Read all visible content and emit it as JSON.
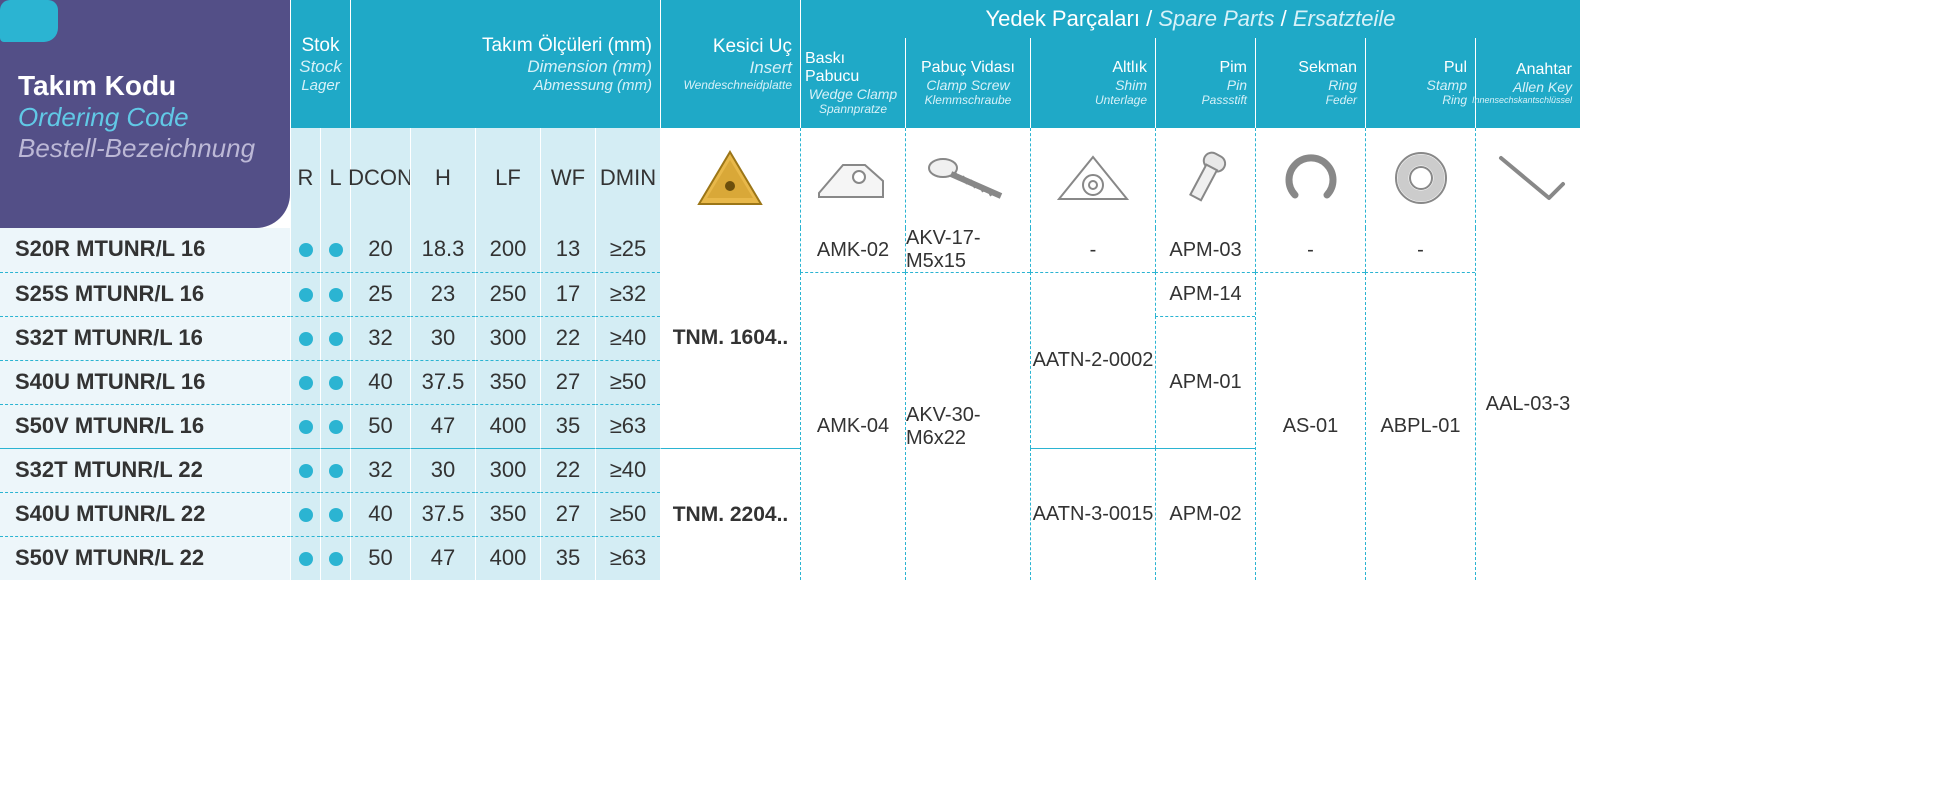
{
  "colors": {
    "teal": "#1fa9c7",
    "tealLight": "#d4edf4",
    "tealPanel": "#edf6fa",
    "purple": "#534f87",
    "purpleLight": "#c0bcd9",
    "accentBlue": "#5bc0de",
    "dot": "#2bb4d2"
  },
  "ordering": {
    "tr": "Takım Kodu",
    "en": "Ordering Code",
    "de": "Bestell-Bezeichnung"
  },
  "spareTitle": {
    "tr": "Yedek Parçaları",
    "en": "Spare Parts",
    "de": "Ersatzteile"
  },
  "groups": {
    "stock": {
      "tr": "Stok",
      "en": "Stock",
      "de": "Lager"
    },
    "dim": {
      "tr": "Takım Ölçüleri (mm)",
      "en": "Dimension (mm)",
      "de": "Abmessung (mm)"
    },
    "insert": {
      "tr": "Kesici Uç",
      "en": "Insert",
      "de": "Wendeschneidplatte"
    },
    "wedge": {
      "tr": "Baskı Pabucu",
      "en": "Wedge Clamp",
      "de": "Spannpratze"
    },
    "clampScrew": {
      "tr": "Pabuç Vidası",
      "en": "Clamp Screw",
      "de": "Klemmschraube"
    },
    "shim": {
      "tr": "Altlık",
      "en": "Shim",
      "de": "Unterlage"
    },
    "pin": {
      "tr": "Pim",
      "en": "Pin",
      "de": "Passstift"
    },
    "ring": {
      "tr": "Sekman",
      "en": "Ring",
      "de": "Feder"
    },
    "stamp": {
      "tr": "Pul",
      "en": "Stamp",
      "de": "Ring"
    },
    "key": {
      "tr": "Anahtar",
      "en": "Allen Key",
      "de": "Innensechskantschlüssel"
    }
  },
  "subheads": {
    "r": "R",
    "l": "L",
    "dcon": "DCON",
    "h": "H",
    "lf": "LF",
    "wf": "WF",
    "dmin": "DMIN"
  },
  "rows": [
    {
      "code": "S20R MTUNR/L 16",
      "r": true,
      "l": true,
      "dcon": "20",
      "h": "18.3",
      "lf": "200",
      "wf": "13",
      "dmin": "≥25"
    },
    {
      "code": "S25S MTUNR/L 16",
      "r": true,
      "l": true,
      "dcon": "25",
      "h": "23",
      "lf": "250",
      "wf": "17",
      "dmin": "≥32"
    },
    {
      "code": "S32T MTUNR/L 16",
      "r": true,
      "l": true,
      "dcon": "32",
      "h": "30",
      "lf": "300",
      "wf": "22",
      "dmin": "≥40"
    },
    {
      "code": "S40U MTUNR/L 16",
      "r": true,
      "l": true,
      "dcon": "40",
      "h": "37.5",
      "lf": "350",
      "wf": "27",
      "dmin": "≥50"
    },
    {
      "code": "S50V MTUNR/L 16",
      "r": true,
      "l": true,
      "dcon": "50",
      "h": "47",
      "lf": "400",
      "wf": "35",
      "dmin": "≥63"
    },
    {
      "code": "S32T MTUNR/L 22",
      "r": true,
      "l": true,
      "dcon": "32",
      "h": "30",
      "lf": "300",
      "wf": "22",
      "dmin": "≥40",
      "groupStart": true
    },
    {
      "code": "S40U MTUNR/L 22",
      "r": true,
      "l": true,
      "dcon": "40",
      "h": "37.5",
      "lf": "350",
      "wf": "27",
      "dmin": "≥50"
    },
    {
      "code": "S50V MTUNR/L 22",
      "r": true,
      "l": true,
      "dcon": "50",
      "h": "47",
      "lf": "400",
      "wf": "35",
      "dmin": "≥63"
    }
  ],
  "spareCells": {
    "insert": [
      {
        "rowStart": 0,
        "rowSpan": 5,
        "value": "TNM. 1604.."
      },
      {
        "rowStart": 5,
        "rowSpan": 3,
        "value": "TNM. 2204.."
      }
    ],
    "wedge": [
      {
        "rowStart": 0,
        "rowSpan": 1,
        "value": "AMK-02"
      },
      {
        "rowStart": 1,
        "rowSpan": 7,
        "value": "AMK-04"
      }
    ],
    "clampScrew": [
      {
        "rowStart": 0,
        "rowSpan": 1,
        "value": "AKV-17-M5x15"
      },
      {
        "rowStart": 1,
        "rowSpan": 7,
        "value": "AKV-30-M6x22"
      }
    ],
    "shim": [
      {
        "rowStart": 0,
        "rowSpan": 1,
        "value": "-"
      },
      {
        "rowStart": 1,
        "rowSpan": 4,
        "value": "AATN-2-0002"
      },
      {
        "rowStart": 5,
        "rowSpan": 3,
        "value": "AATN-3-0015"
      }
    ],
    "pin": [
      {
        "rowStart": 0,
        "rowSpan": 1,
        "value": "APM-03"
      },
      {
        "rowStart": 1,
        "rowSpan": 1,
        "value": "APM-14"
      },
      {
        "rowStart": 2,
        "rowSpan": 3,
        "value": "APM-01"
      },
      {
        "rowStart": 5,
        "rowSpan": 3,
        "value": "APM-02"
      }
    ],
    "ring": [
      {
        "rowStart": 0,
        "rowSpan": 1,
        "value": "-"
      },
      {
        "rowStart": 1,
        "rowSpan": 7,
        "value": "AS-01"
      }
    ],
    "stamp": [
      {
        "rowStart": 0,
        "rowSpan": 1,
        "value": "-"
      },
      {
        "rowStart": 1,
        "rowSpan": 7,
        "value": "ABPL-01"
      }
    ],
    "key": [
      {
        "rowStart": 0,
        "rowSpan": 8,
        "value": "AAL-03-3"
      }
    ]
  }
}
